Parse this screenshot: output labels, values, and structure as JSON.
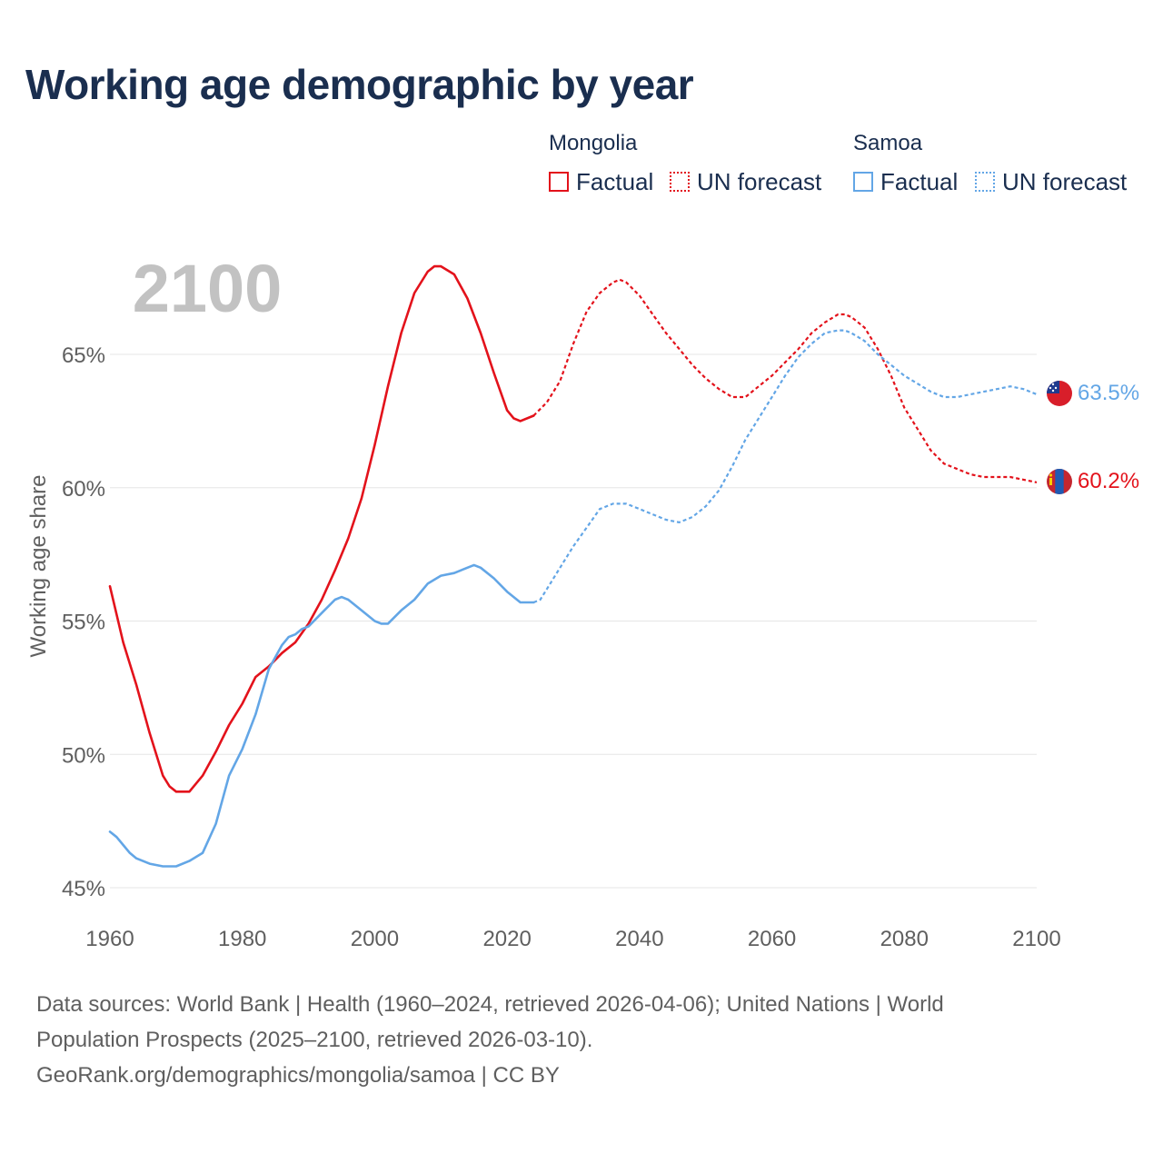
{
  "title": "Working age demographic by year",
  "legend": {
    "mongolia_label": "Mongolia",
    "samoa_label": "Samoa",
    "factual_label": "Factual",
    "forecast_label": "UN forecast"
  },
  "year_watermark": "2100",
  "footer": {
    "line1": "Data sources: World Bank | Health (1960–2024, retrieved 2026-04-06); United Nations | World",
    "line2": "Population Prospects (2025–2100, retrieved 2026-03-10).",
    "line3": "GeoRank.org/demographics/mongolia/samoa | CC BY"
  },
  "colors": {
    "mongolia": "#e3121b",
    "samoa": "#63a6e6",
    "title": "#1a2e4f",
    "axis_text": "#5f5f5f",
    "grid": "#e6e6e6",
    "watermark": "#c2c2c2"
  },
  "chart_data": {
    "type": "line",
    "title": "Working age demographic by year",
    "xlabel": "",
    "ylabel": "Working age share",
    "xlim": [
      1960,
      2100
    ],
    "ylim": [
      45,
      68.5
    ],
    "x_ticks": [
      1960,
      1980,
      2000,
      2020,
      2040,
      2060,
      2080,
      2100
    ],
    "x_tick_labels": [
      "1960",
      "1980",
      "2000",
      "2020",
      "2040",
      "2060",
      "2080",
      "2100"
    ],
    "y_ticks": [
      45,
      50,
      55,
      60,
      65
    ],
    "y_tick_labels": [
      "45%",
      "50%",
      "55%",
      "60%",
      "65%"
    ],
    "factual_range": [
      1960,
      2024
    ],
    "forecast_range": [
      2024,
      2100
    ],
    "series": [
      {
        "name": "Mongolia",
        "end_label": "60.2%",
        "x": [
          1960,
          1962,
          1964,
          1966,
          1968,
          1969,
          1970,
          1972,
          1974,
          1976,
          1978,
          1980,
          1982,
          1984,
          1986,
          1988,
          1990,
          1992,
          1994,
          1996,
          1998,
          2000,
          2002,
          2004,
          2006,
          2008,
          2009,
          2010,
          2012,
          2014,
          2016,
          2018,
          2020,
          2021,
          2022,
          2024,
          2026,
          2028,
          2030,
          2032,
          2034,
          2036,
          2037,
          2038,
          2040,
          2042,
          2044,
          2046,
          2048,
          2050,
          2052,
          2054,
          2056,
          2058,
          2060,
          2062,
          2064,
          2066,
          2068,
          2070,
          2071,
          2072,
          2074,
          2076,
          2078,
          2080,
          2082,
          2084,
          2086,
          2088,
          2090,
          2092,
          2094,
          2096,
          2098,
          2100
        ],
        "values": [
          56.3,
          54.2,
          52.6,
          50.8,
          49.2,
          48.8,
          48.6,
          48.6,
          49.2,
          50.1,
          51.1,
          51.9,
          52.9,
          53.3,
          53.8,
          54.2,
          54.9,
          55.8,
          56.9,
          58.1,
          59.6,
          61.6,
          63.8,
          65.8,
          67.3,
          68.1,
          68.3,
          68.3,
          68.0,
          67.1,
          65.8,
          64.3,
          62.9,
          62.6,
          62.5,
          62.7,
          63.2,
          64.0,
          65.4,
          66.6,
          67.3,
          67.7,
          67.8,
          67.7,
          67.2,
          66.5,
          65.8,
          65.2,
          64.6,
          64.1,
          63.7,
          63.4,
          63.4,
          63.8,
          64.2,
          64.7,
          65.2,
          65.8,
          66.2,
          66.5,
          66.5,
          66.4,
          66.0,
          65.2,
          64.2,
          63.0,
          62.2,
          61.4,
          60.9,
          60.7,
          60.5,
          60.4,
          60.4,
          60.4,
          60.3,
          60.2
        ]
      },
      {
        "name": "Samoa",
        "end_label": "63.5%",
        "x": [
          1960,
          1961,
          1962,
          1963,
          1964,
          1966,
          1968,
          1969,
          1970,
          1972,
          1974,
          1976,
          1978,
          1980,
          1982,
          1984,
          1986,
          1987,
          1988,
          1989,
          1990,
          1992,
          1994,
          1995,
          1996,
          1998,
          2000,
          2001,
          2002,
          2004,
          2006,
          2008,
          2010,
          2012,
          2014,
          2015,
          2016,
          2018,
          2020,
          2022,
          2024,
          2025,
          2026,
          2028,
          2030,
          2032,
          2034,
          2036,
          2038,
          2040,
          2042,
          2044,
          2046,
          2048,
          2050,
          2052,
          2054,
          2056,
          2058,
          2060,
          2062,
          2064,
          2066,
          2068,
          2070,
          2071,
          2072,
          2074,
          2076,
          2078,
          2080,
          2082,
          2084,
          2086,
          2088,
          2090,
          2092,
          2094,
          2096,
          2098,
          2100
        ],
        "values": [
          47.1,
          46.9,
          46.6,
          46.3,
          46.1,
          45.9,
          45.8,
          45.8,
          45.8,
          46.0,
          46.3,
          47.4,
          49.2,
          50.2,
          51.5,
          53.2,
          54.1,
          54.4,
          54.5,
          54.7,
          54.8,
          55.3,
          55.8,
          55.9,
          55.8,
          55.4,
          55.0,
          54.9,
          54.9,
          55.4,
          55.8,
          56.4,
          56.7,
          56.8,
          57.0,
          57.1,
          57.0,
          56.6,
          56.1,
          55.7,
          55.7,
          55.8,
          56.2,
          57.0,
          57.8,
          58.5,
          59.2,
          59.4,
          59.4,
          59.2,
          59.0,
          58.8,
          58.7,
          58.9,
          59.3,
          59.9,
          60.8,
          61.8,
          62.6,
          63.4,
          64.2,
          64.9,
          65.4,
          65.8,
          65.9,
          65.9,
          65.8,
          65.5,
          65.0,
          64.6,
          64.2,
          63.9,
          63.6,
          63.4,
          63.4,
          63.5,
          63.6,
          63.7,
          63.8,
          63.7,
          63.5
        ]
      }
    ]
  }
}
